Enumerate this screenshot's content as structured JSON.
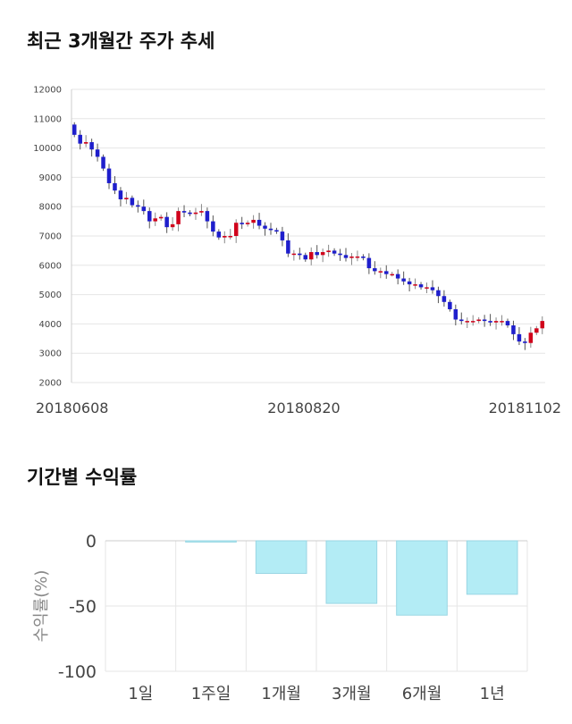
{
  "sections": {
    "trend_title": "최근 3개월간 주가 추세",
    "returns_title": "기간별 수익률"
  },
  "colors": {
    "up": "#d0021b",
    "down": "#1e1ecc",
    "bar_fill": "#b3ecf5",
    "bar_stroke": "#99d6e3",
    "grid": "#e6e6e6"
  },
  "chart_data": [
    {
      "type": "candlestick",
      "title": "최근 3개월간 주가 추세",
      "ylim": [
        2000,
        12000
      ],
      "y_ticks": [
        2000,
        3000,
        4000,
        5000,
        6000,
        7000,
        8000,
        9000,
        10000,
        11000,
        12000
      ],
      "x_tick_labels": [
        "20180608",
        "20180820",
        "20181102"
      ],
      "grid": true,
      "closes": [
        10450,
        10150,
        10200,
        9950,
        9700,
        9300,
        8800,
        8550,
        8250,
        8300,
        8050,
        8000,
        7850,
        7500,
        7600,
        7650,
        7300,
        7400,
        7850,
        7800,
        7750,
        7800,
        7850,
        7500,
        7150,
        6950,
        7000,
        7000,
        7450,
        7400,
        7450,
        7550,
        7350,
        7250,
        7200,
        7150,
        6850,
        6400,
        6400,
        6350,
        6200,
        6450,
        6350,
        6450,
        6500,
        6400,
        6350,
        6250,
        6300,
        6300,
        6250,
        5900,
        5800,
        5800,
        5700,
        5700,
        5550,
        5450,
        5350,
        5350,
        5250,
        5250,
        5150,
        4950,
        4750,
        4500,
        4150,
        4100,
        4100,
        4100,
        4150,
        4100,
        4050,
        4100,
        4100,
        3950,
        3650,
        3400,
        3350,
        3700,
        3850,
        4100
      ]
    },
    {
      "type": "bar",
      "title": "기간별 수익률",
      "categories": [
        "1일",
        "1주일",
        "1개월",
        "3개월",
        "6개월",
        "1년"
      ],
      "values": [
        0,
        -1,
        -25,
        -48,
        -57,
        -41
      ],
      "ylabel": "수익률(%)",
      "ylim": [
        -100,
        0
      ],
      "y_ticks": [
        0,
        -50,
        -100
      ],
      "grid": true
    }
  ]
}
